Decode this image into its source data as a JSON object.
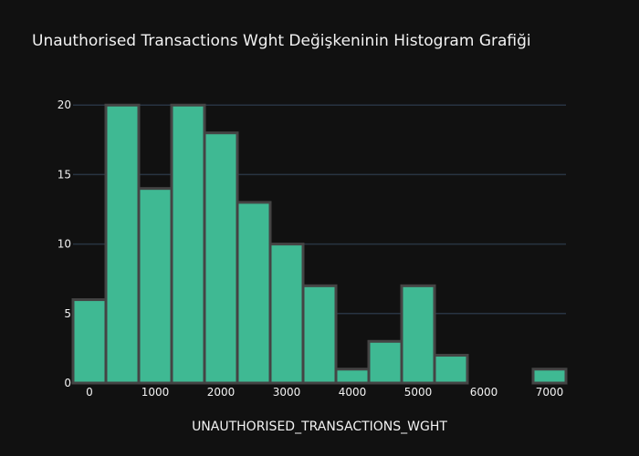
{
  "chart_data": {
    "type": "bar",
    "title": "Unauthorised Transactions Wght Değişkeninin Histogram Grafiği",
    "xlabel": "UNAUTHORISED_TRANSACTIONS_WGHT",
    "ylabel": "",
    "bin_width": 500,
    "bins": [
      {
        "start": -250,
        "end": 250,
        "count": 6
      },
      {
        "start": 250,
        "end": 750,
        "count": 20
      },
      {
        "start": 750,
        "end": 1250,
        "count": 14
      },
      {
        "start": 1250,
        "end": 1750,
        "count": 20
      },
      {
        "start": 1750,
        "end": 2250,
        "count": 18
      },
      {
        "start": 2250,
        "end": 2750,
        "count": 13
      },
      {
        "start": 2750,
        "end": 3250,
        "count": 10
      },
      {
        "start": 3250,
        "end": 3750,
        "count": 7
      },
      {
        "start": 3750,
        "end": 4250,
        "count": 1
      },
      {
        "start": 4250,
        "end": 4750,
        "count": 3
      },
      {
        "start": 4750,
        "end": 5250,
        "count": 7
      },
      {
        "start": 5250,
        "end": 5750,
        "count": 2
      },
      {
        "start": 5750,
        "end": 6250,
        "count": 0
      },
      {
        "start": 6250,
        "end": 6750,
        "count": 0
      },
      {
        "start": 6750,
        "end": 7250,
        "count": 1
      }
    ],
    "xlim": [
      -250,
      7250
    ],
    "ylim": [
      0,
      21
    ],
    "xticks": [
      0,
      1000,
      2000,
      3000,
      4000,
      5000,
      6000,
      7000
    ],
    "xtick_labels": [
      "0",
      "1000",
      "2000",
      "3000",
      "4000",
      "5000",
      "6000",
      "7000"
    ],
    "yticks": [
      0,
      5,
      10,
      15,
      20
    ],
    "ytick_labels": [
      "0",
      "5",
      "10",
      "15",
      "20"
    ],
    "grid": true,
    "legend": "none",
    "colors": {
      "background": "#111111",
      "bar": "#3FB993",
      "bar_outline": "#444444",
      "grid": "#283442",
      "text": "#f2f2f2"
    }
  }
}
